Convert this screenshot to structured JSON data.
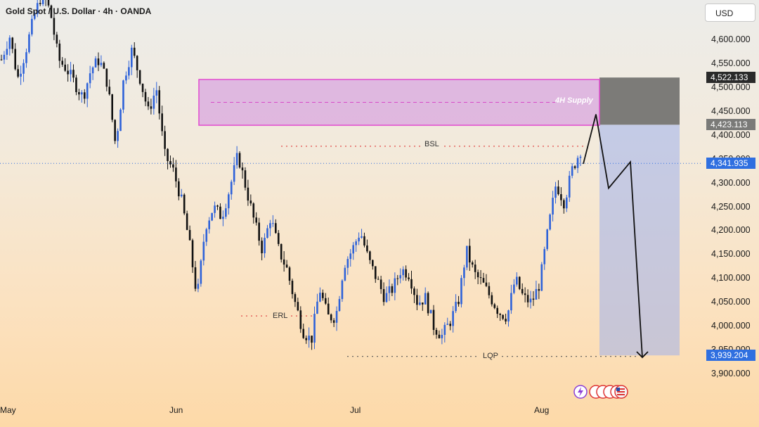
{
  "header": {
    "title": "Gold Spot / U.S. Dollar · 4h · OANDA",
    "currency_button": "USD"
  },
  "chart_data": {
    "type": "candlestick",
    "x_labels": [
      "May",
      "Jun",
      "Jul",
      "Aug"
    ],
    "y_ticks": [
      3900,
      3950,
      4000,
      4050,
      4100,
      4150,
      4200,
      4250,
      4300,
      4350,
      4400,
      4450,
      4500,
      4550,
      4600
    ],
    "y_tick_labels": [
      "3,900.000",
      "3,950.000",
      "4,000.000",
      "4,050.000",
      "4,100.000",
      "4,150.000",
      "4,200.000",
      "4,250.000",
      "4,300.000",
      "4,350.000",
      "4,400.000",
      "4,450.000",
      "4,500.000",
      "4,550.000",
      "4,600.000"
    ],
    "ylim": [
      3880,
      4680
    ],
    "price_markers": [
      {
        "label": "4,522.133",
        "value": 4522.133,
        "color": "#2a2a2a"
      },
      {
        "label": "4,423.113",
        "value": 4423.113,
        "color": "#7a7a78"
      },
      {
        "label": "4,341.935",
        "value": 4341.935,
        "color": "#2f6fe0"
      },
      {
        "label": "3,939.204",
        "value": 3939.204,
        "color": "#2f6fe0"
      }
    ],
    "price_path_points": [
      [
        0,
        4560
      ],
      [
        1,
        4610
      ],
      [
        2,
        4520
      ],
      [
        3,
        4580
      ],
      [
        4,
        4650
      ],
      [
        5,
        4700
      ],
      [
        6,
        4660
      ],
      [
        7,
        4560
      ],
      [
        8,
        4540
      ],
      [
        9,
        4510
      ],
      [
        10,
        4480
      ],
      [
        11,
        4540
      ],
      [
        12,
        4560
      ],
      [
        13,
        4510
      ],
      [
        14,
        4380
      ],
      [
        15,
        4520
      ],
      [
        16,
        4580
      ],
      [
        17,
        4520
      ],
      [
        18,
        4450
      ],
      [
        19,
        4500
      ],
      [
        20,
        4360
      ],
      [
        21,
        4330
      ],
      [
        22,
        4270
      ],
      [
        23,
        4180
      ],
      [
        24,
        4060
      ],
      [
        25,
        4210
      ],
      [
        26,
        4250
      ],
      [
        27,
        4230
      ],
      [
        28,
        4290
      ],
      [
        29,
        4360
      ],
      [
        30,
        4290
      ],
      [
        31,
        4220
      ],
      [
        32,
        4160
      ],
      [
        33,
        4230
      ],
      [
        34,
        4160
      ],
      [
        35,
        4120
      ],
      [
        36,
        4050
      ],
      [
        37,
        3990
      ],
      [
        38,
        3970
      ],
      [
        39,
        4080
      ],
      [
        40,
        4020
      ],
      [
        41,
        4020
      ],
      [
        42,
        4130
      ],
      [
        43,
        4160
      ],
      [
        44,
        4200
      ],
      [
        45,
        4140
      ],
      [
        46,
        4100
      ],
      [
        47,
        4060
      ],
      [
        48,
        4080
      ],
      [
        49,
        4120
      ],
      [
        50,
        4110
      ],
      [
        51,
        4050
      ],
      [
        52,
        4060
      ],
      [
        53,
        4000
      ],
      [
        54,
        3980
      ],
      [
        55,
        4010
      ],
      [
        56,
        4050
      ],
      [
        57,
        4160
      ],
      [
        58,
        4110
      ],
      [
        59,
        4090
      ],
      [
        60,
        4060
      ],
      [
        61,
        4030
      ],
      [
        62,
        4020
      ],
      [
        63,
        4100
      ],
      [
        64,
        4060
      ],
      [
        65,
        4050
      ],
      [
        66,
        4090
      ],
      [
        67,
        4200
      ],
      [
        68,
        4300
      ],
      [
        69,
        4260
      ],
      [
        70,
        4330
      ],
      [
        71,
        4370
      ]
    ],
    "projection": [
      4341,
      4445,
      4290,
      4345,
      3935
    ],
    "zones": [
      {
        "label": "4H Supply",
        "top": 4518,
        "bottom": 4422
      },
      {
        "label": "BSL",
        "value": 4378
      },
      {
        "label": "ERL",
        "value": 4022
      },
      {
        "label": "LQP",
        "value": 3937
      }
    ],
    "position": {
      "entry": 4423.113,
      "stop": 4522.133,
      "target": 3939.204
    }
  }
}
